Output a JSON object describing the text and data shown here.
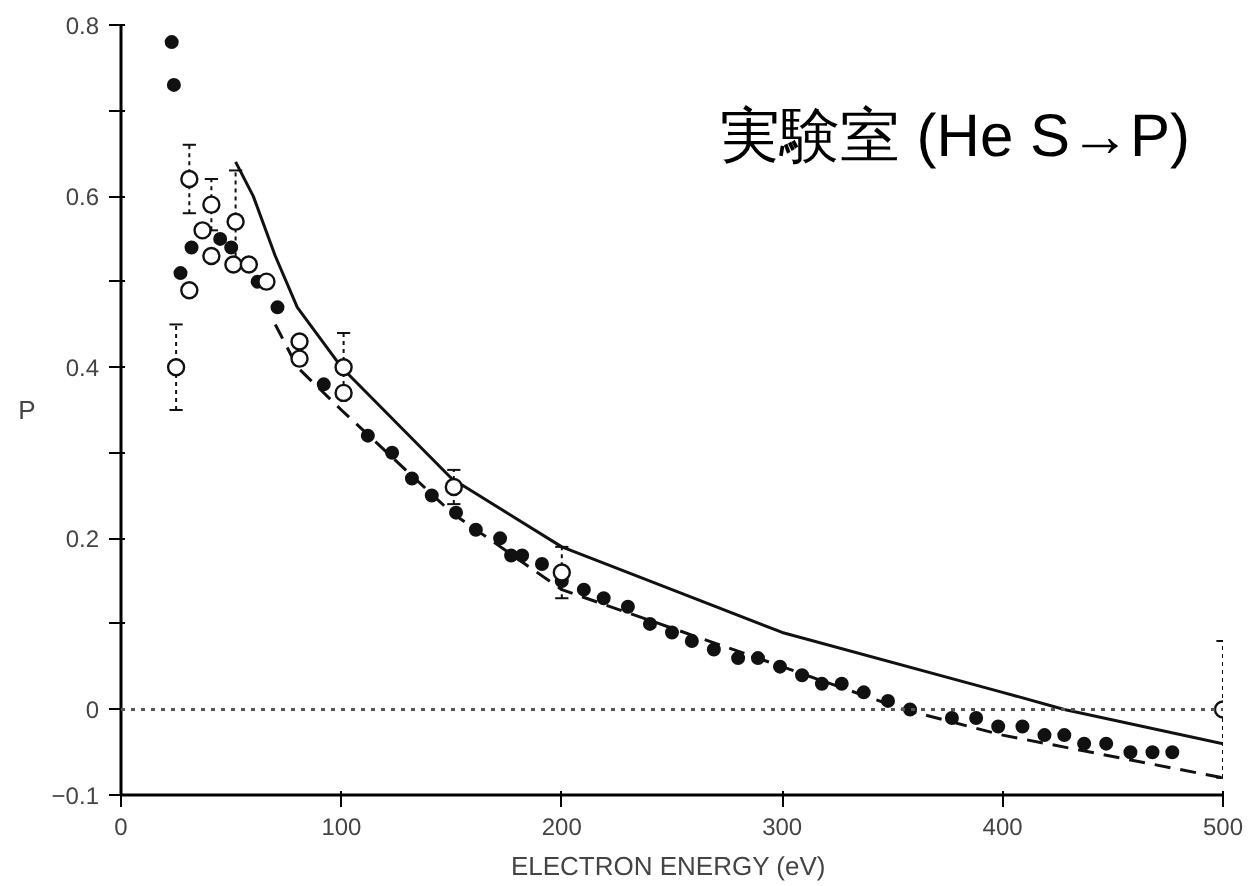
{
  "chart_data": {
    "type": "scatter",
    "xlabel": "ELECTRON ENERGY  (eV)",
    "ylabel": "P",
    "annotations": [
      "実験室 (He S→P)"
    ],
    "xlim": [
      0,
      500
    ],
    "ylim": [
      -0.1,
      0.8
    ],
    "xticks": [
      0,
      100,
      200,
      300,
      400,
      500
    ],
    "yticks": [
      -0.1,
      0,
      {
        "value": 0.1,
        "label": null
      },
      0.2,
      {
        "value": 0.3,
        "label": null
      },
      0.4,
      {
        "value": 0.5,
        "label": null
      },
      0.6,
      {
        "value": 0.7,
        "label": null
      },
      0.8
    ],
    "grid": false,
    "ref_lines": [
      {
        "axis": "y",
        "value": 0,
        "label": null,
        "color": "#555555",
        "line_style": "dotted"
      }
    ],
    "series": [
      {
        "type": "line",
        "color": "#111111",
        "line_style": "solid",
        "marker": "none",
        "x": [
          52,
          60,
          70,
          80,
          100,
          150,
          200,
          250,
          300,
          400,
          428,
          500
        ],
        "values": [
          0.64,
          0.6,
          0.53,
          0.47,
          0.4,
          0.27,
          0.19,
          0.14,
          0.09,
          0.02,
          0.0,
          -0.04
        ]
      },
      {
        "type": "line",
        "color": "#111111",
        "line_style": "dashed",
        "marker": "none",
        "x": [
          70,
          80,
          100,
          150,
          200,
          300,
          355,
          400,
          500
        ],
        "values": [
          0.45,
          0.4,
          0.35,
          0.23,
          0.14,
          0.05,
          0.0,
          -0.03,
          -0.08
        ]
      },
      {
        "color": "#111111",
        "marker": "circle",
        "x": [
          23,
          24,
          27,
          32,
          45,
          50,
          62,
          71,
          92,
          112,
          123,
          132,
          141,
          152,
          161,
          172,
          177,
          182,
          191,
          200,
          210,
          219,
          230,
          240,
          250,
          259,
          269,
          280,
          289,
          299,
          309,
          318,
          327,
          337,
          348,
          358,
          377,
          388,
          398,
          409,
          419,
          428,
          437,
          447,
          458,
          468,
          477
        ],
        "values": [
          0.78,
          0.73,
          0.51,
          0.54,
          0.55,
          0.54,
          0.5,
          0.47,
          0.38,
          0.32,
          0.3,
          0.27,
          0.25,
          0.23,
          0.21,
          0.2,
          0.18,
          0.18,
          0.17,
          0.15,
          0.14,
          0.13,
          0.12,
          0.1,
          0.09,
          0.08,
          0.07,
          0.06,
          0.06,
          0.05,
          0.04,
          0.03,
          0.03,
          0.02,
          0.01,
          0.0,
          -0.01,
          -0.01,
          -0.02,
          -0.02,
          -0.03,
          -0.03,
          -0.04,
          -0.04,
          -0.05,
          -0.05,
          -0.05
        ]
      },
      {
        "color": "#111111",
        "marker": "circle_open",
        "x": [
          25,
          31,
          31,
          37,
          41,
          41,
          51,
          52,
          58,
          66,
          81,
          81,
          101,
          101,
          151,
          200,
          500
        ],
        "values": [
          0.4,
          0.62,
          0.49,
          0.56,
          0.59,
          0.53,
          0.52,
          0.57,
          0.52,
          0.5,
          0.43,
          0.41,
          0.4,
          0.37,
          0.26,
          0.16,
          0.0
        ],
        "errors": [
          [
            0.35,
            0.45
          ],
          [
            0.58,
            0.66
          ],
          null,
          null,
          [
            0.56,
            0.62
          ],
          null,
          null,
          [
            0.52,
            0.63
          ],
          null,
          null,
          null,
          null,
          [
            0.37,
            0.44
          ],
          null,
          [
            0.24,
            0.28
          ],
          [
            0.13,
            0.19
          ],
          [
            -0.08,
            0.08
          ]
        ]
      }
    ]
  }
}
